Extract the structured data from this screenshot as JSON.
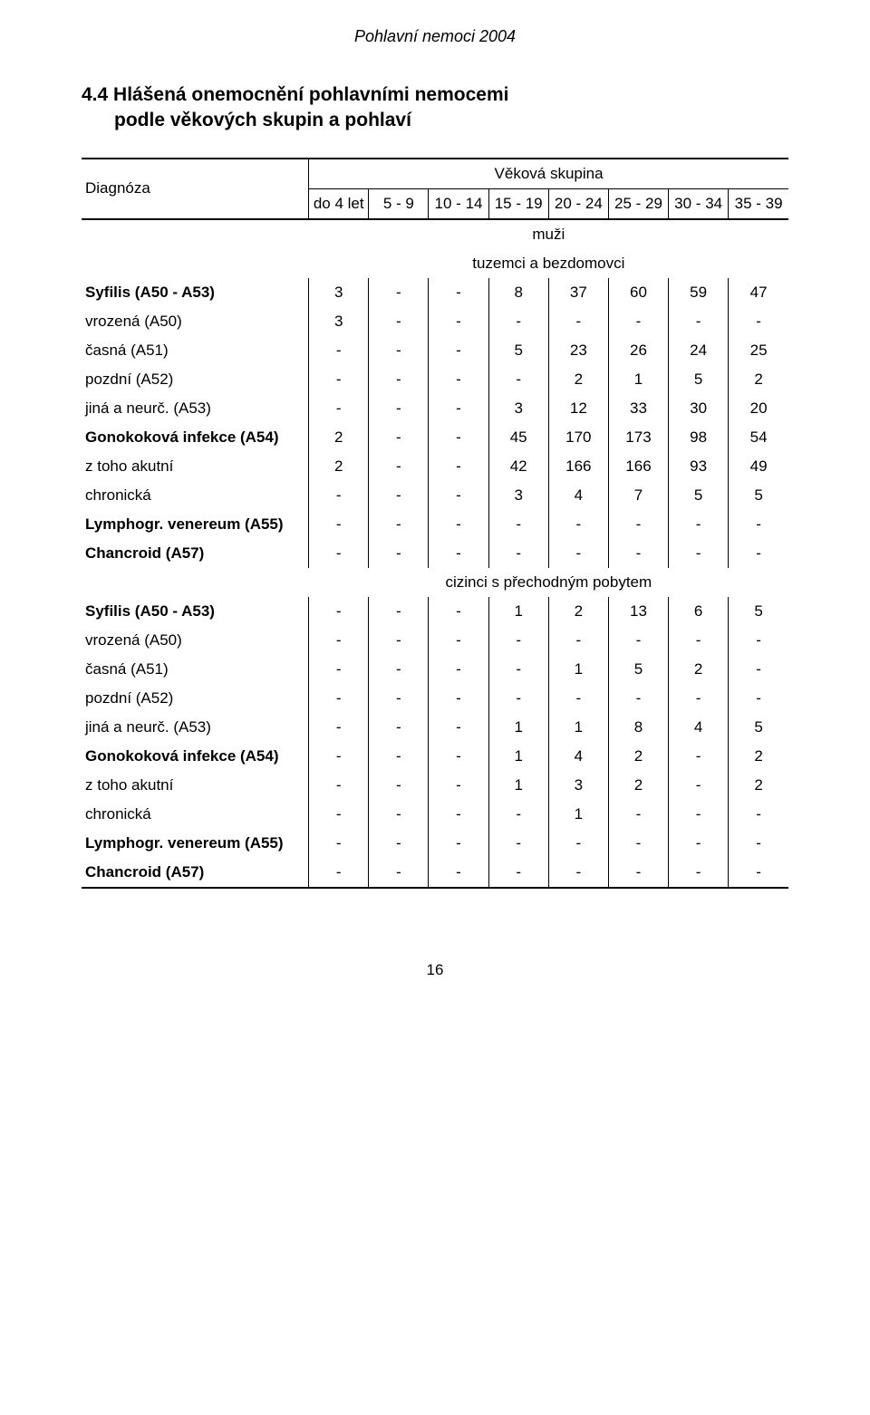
{
  "doc": {
    "header": "Pohlavní nemoci 2004",
    "page_number": "16"
  },
  "section": {
    "number": "4.4",
    "line1": "4.4  Hlášená onemocnění pohlavními nemocemi",
    "line2": "podle věkových skupin a pohlaví"
  },
  "table": {
    "diag_label": "Diagnóza",
    "group_label": "Věková skupina",
    "age_cols": [
      "do 4 let",
      "5 - 9",
      "10 - 14",
      "15 - 19",
      "20 - 24",
      "25 - 29",
      "30 - 34",
      "35 - 39"
    ],
    "gender_label": "muži",
    "subset1_label": "tuzemci a bezdomovci",
    "subset2_label": "cizinci s přechodným pobytem",
    "rows1": [
      {
        "label": "Syfilis (A50 - A53)",
        "bold": true,
        "indent": 0,
        "cells": [
          "3",
          "-",
          "-",
          "8",
          "37",
          "60",
          "59",
          "47"
        ]
      },
      {
        "label": "vrozená (A50)",
        "bold": false,
        "indent": 1,
        "cells": [
          "3",
          "-",
          "-",
          "-",
          "-",
          "-",
          "-",
          "-"
        ]
      },
      {
        "label": "časná (A51)",
        "bold": false,
        "indent": 1,
        "cells": [
          "-",
          "-",
          "-",
          "5",
          "23",
          "26",
          "24",
          "25"
        ]
      },
      {
        "label": "pozdní (A52)",
        "bold": false,
        "indent": 1,
        "cells": [
          "-",
          "-",
          "-",
          "-",
          "2",
          "1",
          "5",
          "2"
        ]
      },
      {
        "label": "jiná a neurč. (A53)",
        "bold": false,
        "indent": 1,
        "cells": [
          "-",
          "-",
          "-",
          "3",
          "12",
          "33",
          "30",
          "20"
        ]
      },
      {
        "label": "Gonokoková infekce (A54)",
        "bold": true,
        "indent": 0,
        "cells": [
          "2",
          "-",
          "-",
          "45",
          "170",
          "173",
          "98",
          "54"
        ]
      },
      {
        "label": "z toho akutní",
        "bold": false,
        "indent": 1,
        "cells": [
          "2",
          "-",
          "-",
          "42",
          "166",
          "166",
          "93",
          "49"
        ]
      },
      {
        "label": "chronická",
        "bold": false,
        "indent": 2,
        "cells": [
          "-",
          "-",
          "-",
          "3",
          "4",
          "7",
          "5",
          "5"
        ]
      },
      {
        "label": "Lymphogr. venereum (A55)",
        "bold": true,
        "indent": 0,
        "cells": [
          "-",
          "-",
          "-",
          "-",
          "-",
          "-",
          "-",
          "-"
        ]
      },
      {
        "label": "Chancroid (A57)",
        "bold": true,
        "indent": 0,
        "cells": [
          "-",
          "-",
          "-",
          "-",
          "-",
          "-",
          "-",
          "-"
        ]
      }
    ],
    "rows2": [
      {
        "label": "Syfilis (A50 - A53)",
        "bold": true,
        "indent": 0,
        "cells": [
          "-",
          "-",
          "-",
          "1",
          "2",
          "13",
          "6",
          "5"
        ]
      },
      {
        "label": "vrozená (A50)",
        "bold": false,
        "indent": 1,
        "cells": [
          "-",
          "-",
          "-",
          "-",
          "-",
          "-",
          "-",
          "-"
        ]
      },
      {
        "label": "časná (A51)",
        "bold": false,
        "indent": 1,
        "cells": [
          "-",
          "-",
          "-",
          "-",
          "1",
          "5",
          "2",
          "-"
        ]
      },
      {
        "label": "pozdní (A52)",
        "bold": false,
        "indent": 1,
        "cells": [
          "-",
          "-",
          "-",
          "-",
          "-",
          "-",
          "-",
          "-"
        ]
      },
      {
        "label": "jiná a neurč. (A53)",
        "bold": false,
        "indent": 1,
        "cells": [
          "-",
          "-",
          "-",
          "1",
          "1",
          "8",
          "4",
          "5"
        ]
      },
      {
        "label": "Gonokoková infekce (A54)",
        "bold": true,
        "indent": 0,
        "cells": [
          "-",
          "-",
          "-",
          "1",
          "4",
          "2",
          "-",
          "2"
        ]
      },
      {
        "label": "z toho akutní",
        "bold": false,
        "indent": 1,
        "cells": [
          "-",
          "-",
          "-",
          "1",
          "3",
          "2",
          "-",
          "2"
        ]
      },
      {
        "label": "chronická",
        "bold": false,
        "indent": 2,
        "cells": [
          "-",
          "-",
          "-",
          "-",
          "1",
          "-",
          "-",
          "-"
        ]
      },
      {
        "label": "Lymphogr. venereum (A55)",
        "bold": true,
        "indent": 0,
        "cells": [
          "-",
          "-",
          "-",
          "-",
          "-",
          "-",
          "-",
          "-"
        ]
      },
      {
        "label": "Chancroid (A57)",
        "bold": true,
        "indent": 0,
        "cells": [
          "-",
          "-",
          "-",
          "-",
          "-",
          "-",
          "-",
          "-"
        ]
      }
    ]
  }
}
